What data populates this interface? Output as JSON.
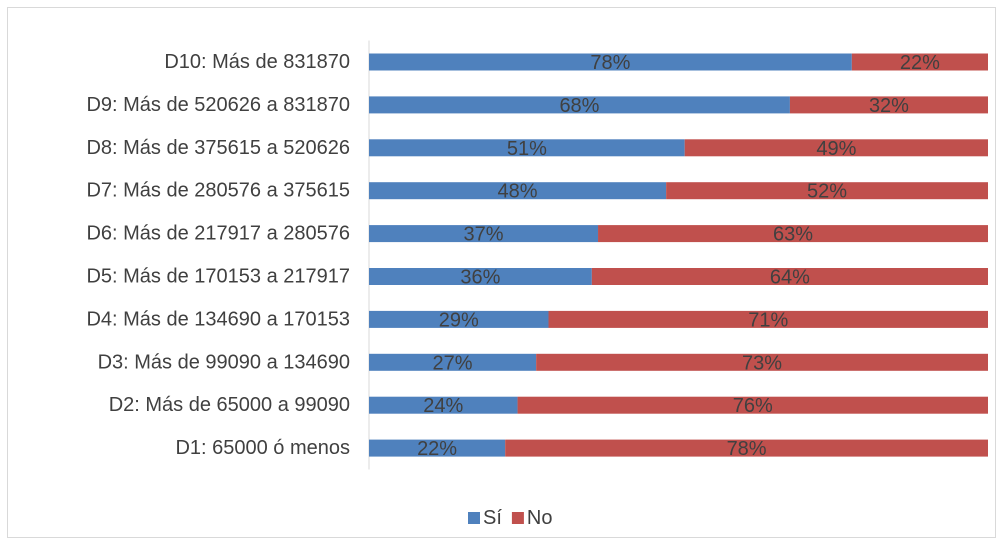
{
  "chart_data": {
    "type": "bar",
    "orientation": "horizontal",
    "stacked": true,
    "percent_stacked": true,
    "categories": [
      "D10: Más de 831870",
      "D9: Más de 520626 a 831870",
      "D8: Más de 375615 a 520626",
      "D7: Más de 280576 a 375615",
      "D6: Más de 217917 a 280576",
      "D5: Más de 170153 a 217917",
      "D4: Más de 134690 a 170153",
      "D3: Más de 99090 a 134690",
      "D2: Más de 65000 a 99090",
      "D1: 65000 ó menos"
    ],
    "series": [
      {
        "name": "Sí",
        "color": "#4f81bd",
        "values": [
          78,
          68,
          51,
          48,
          37,
          36,
          29,
          27,
          24,
          22
        ],
        "labels": [
          "78%",
          "68%",
          "51%",
          "48%",
          "37%",
          "36%",
          "29%",
          "27%",
          "24%",
          "22%"
        ]
      },
      {
        "name": "No",
        "color": "#c0504d",
        "values": [
          22,
          32,
          49,
          52,
          63,
          64,
          71,
          73,
          76,
          78
        ],
        "labels": [
          "22%",
          "32%",
          "49%",
          "52%",
          "63%",
          "64%",
          "71%",
          "73%",
          "76%",
          "78%"
        ]
      }
    ],
    "xlim": [
      0,
      100
    ],
    "title": "",
    "xlabel": "",
    "ylabel": "",
    "grid": false,
    "legend_position": "bottom"
  }
}
